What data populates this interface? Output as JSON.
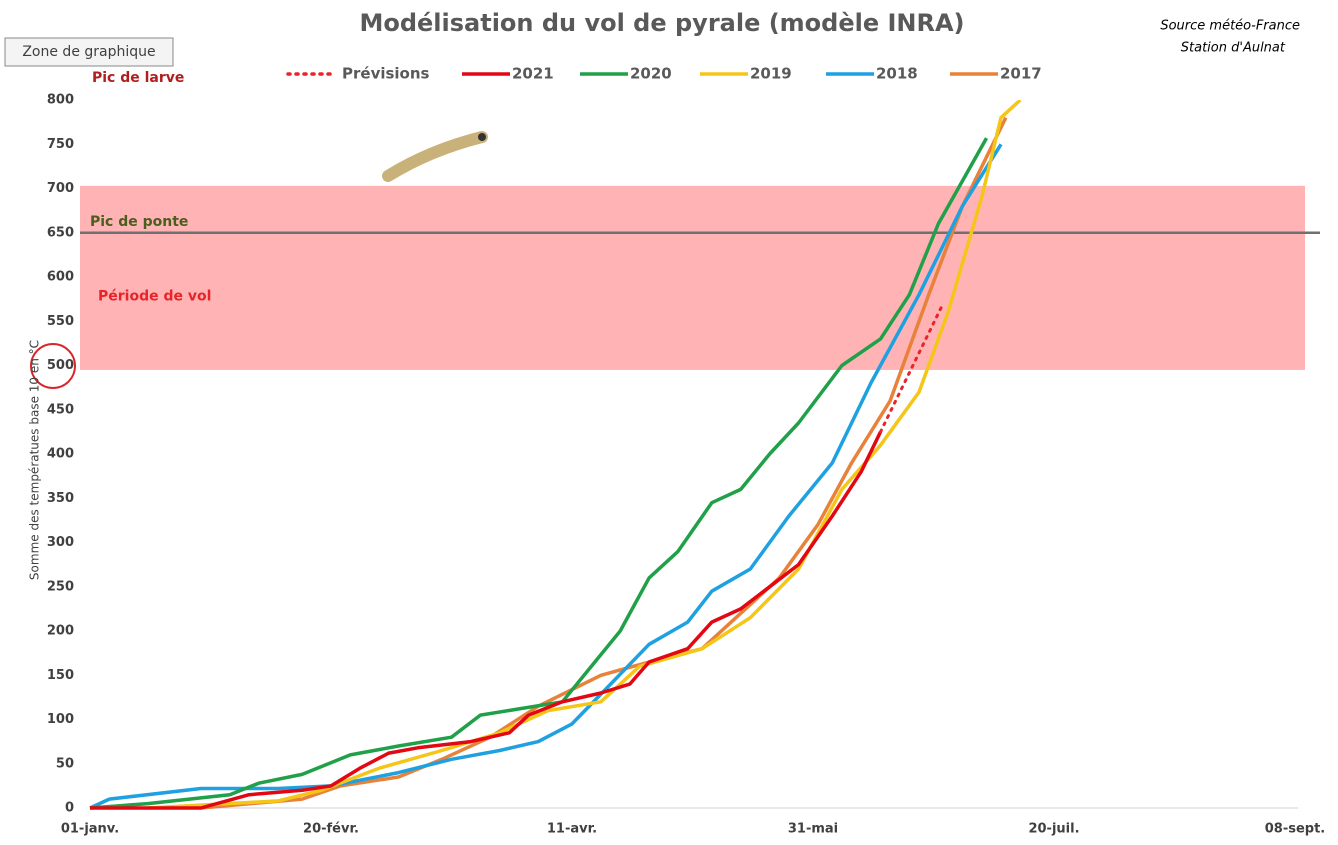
{
  "chart_data": {
    "type": "line",
    "title": "Modélisation du vol de pyrale (modèle INRA)",
    "source": [
      "Source météo-France",
      "Station d'Aulnat"
    ],
    "tooltip": "Zone de graphique",
    "y_label": "Somme des températues base 10 en °C",
    "xlim": [
      0,
      250
    ],
    "xticks": [
      {
        "value": 0,
        "label": "01-janv."
      },
      {
        "value": 50,
        "label": "20-févr."
      },
      {
        "value": 100,
        "label": "11-avr."
      },
      {
        "value": 150,
        "label": "31-mai"
      },
      {
        "value": 200,
        "label": "20-juil."
      },
      {
        "value": 250,
        "label": "08-sept."
      }
    ],
    "ylim": [
      0,
      800
    ],
    "yticks": [
      0,
      50,
      100,
      150,
      200,
      250,
      300,
      350,
      400,
      450,
      500,
      550,
      600,
      650,
      700,
      750,
      800
    ],
    "band": {
      "label": "Période de vol",
      "from": 495,
      "to": 703,
      "color": "#ffb3b5"
    },
    "hline": {
      "label": "Pic de ponte",
      "value": 650,
      "color": "#707070"
    },
    "annotation": "Pic de larve",
    "series": [
      {
        "name": "Prévisions",
        "color": "#e8232a",
        "style": "dotted",
        "x": [
          164,
          177
        ],
        "values": [
          425,
          570
        ]
      },
      {
        "name": "2021",
        "color": "#e30613",
        "style": "solid",
        "x": [
          0,
          23,
          33,
          44,
          50,
          56,
          62,
          68,
          79,
          87,
          91,
          98,
          106,
          112,
          116,
          124,
          129,
          135,
          141,
          147,
          154,
          160,
          164
        ],
        "values": [
          0,
          0,
          15,
          20,
          25,
          45,
          62,
          68,
          75,
          85,
          105,
          120,
          130,
          140,
          165,
          180,
          210,
          225,
          250,
          275,
          330,
          380,
          425
        ]
      },
      {
        "name": "2020",
        "color": "#1fa049",
        "style": "solid",
        "x": [
          0,
          12,
          29,
          35,
          44,
          54,
          64,
          75,
          81,
          89,
          98,
          104,
          110,
          116,
          122,
          129,
          135,
          141,
          147,
          156,
          164,
          170,
          176,
          186
        ],
        "values": [
          0,
          5,
          15,
          28,
          38,
          60,
          70,
          80,
          105,
          112,
          120,
          160,
          200,
          260,
          290,
          345,
          360,
          400,
          435,
          500,
          530,
          580,
          660,
          757
        ]
      },
      {
        "name": "2019",
        "color": "#f5c518",
        "style": "solid",
        "x": [
          12,
          39,
          48,
          60,
          73,
          85,
          95,
          106,
          114,
          127,
          137,
          147,
          156,
          164,
          172,
          178,
          185,
          189,
          193
        ],
        "values": [
          0,
          8,
          20,
          45,
          65,
          85,
          110,
          120,
          160,
          180,
          215,
          270,
          360,
          410,
          470,
          560,
          690,
          780,
          800
        ]
      },
      {
        "name": "2018",
        "color": "#1ea1e0",
        "style": "solid",
        "x": [
          0,
          4,
          23,
          39,
          50,
          64,
          75,
          85,
          93,
          100,
          108,
          116,
          124,
          129,
          137,
          145,
          154,
          162,
          172,
          181,
          189
        ],
        "values": [
          0,
          10,
          22,
          22,
          25,
          40,
          55,
          65,
          75,
          95,
          140,
          185,
          210,
          245,
          270,
          330,
          390,
          480,
          580,
          680,
          750
        ]
      },
      {
        "name": "2017",
        "color": "#e8823a",
        "style": "solid",
        "x": [
          23,
          44,
          52,
          64,
          73,
          83,
          93,
          106,
          116,
          127,
          135,
          143,
          151,
          158,
          166,
          174,
          181,
          190
        ],
        "values": [
          0,
          10,
          25,
          35,
          55,
          80,
          115,
          150,
          165,
          180,
          220,
          260,
          320,
          390,
          460,
          580,
          680,
          780
        ]
      }
    ]
  }
}
